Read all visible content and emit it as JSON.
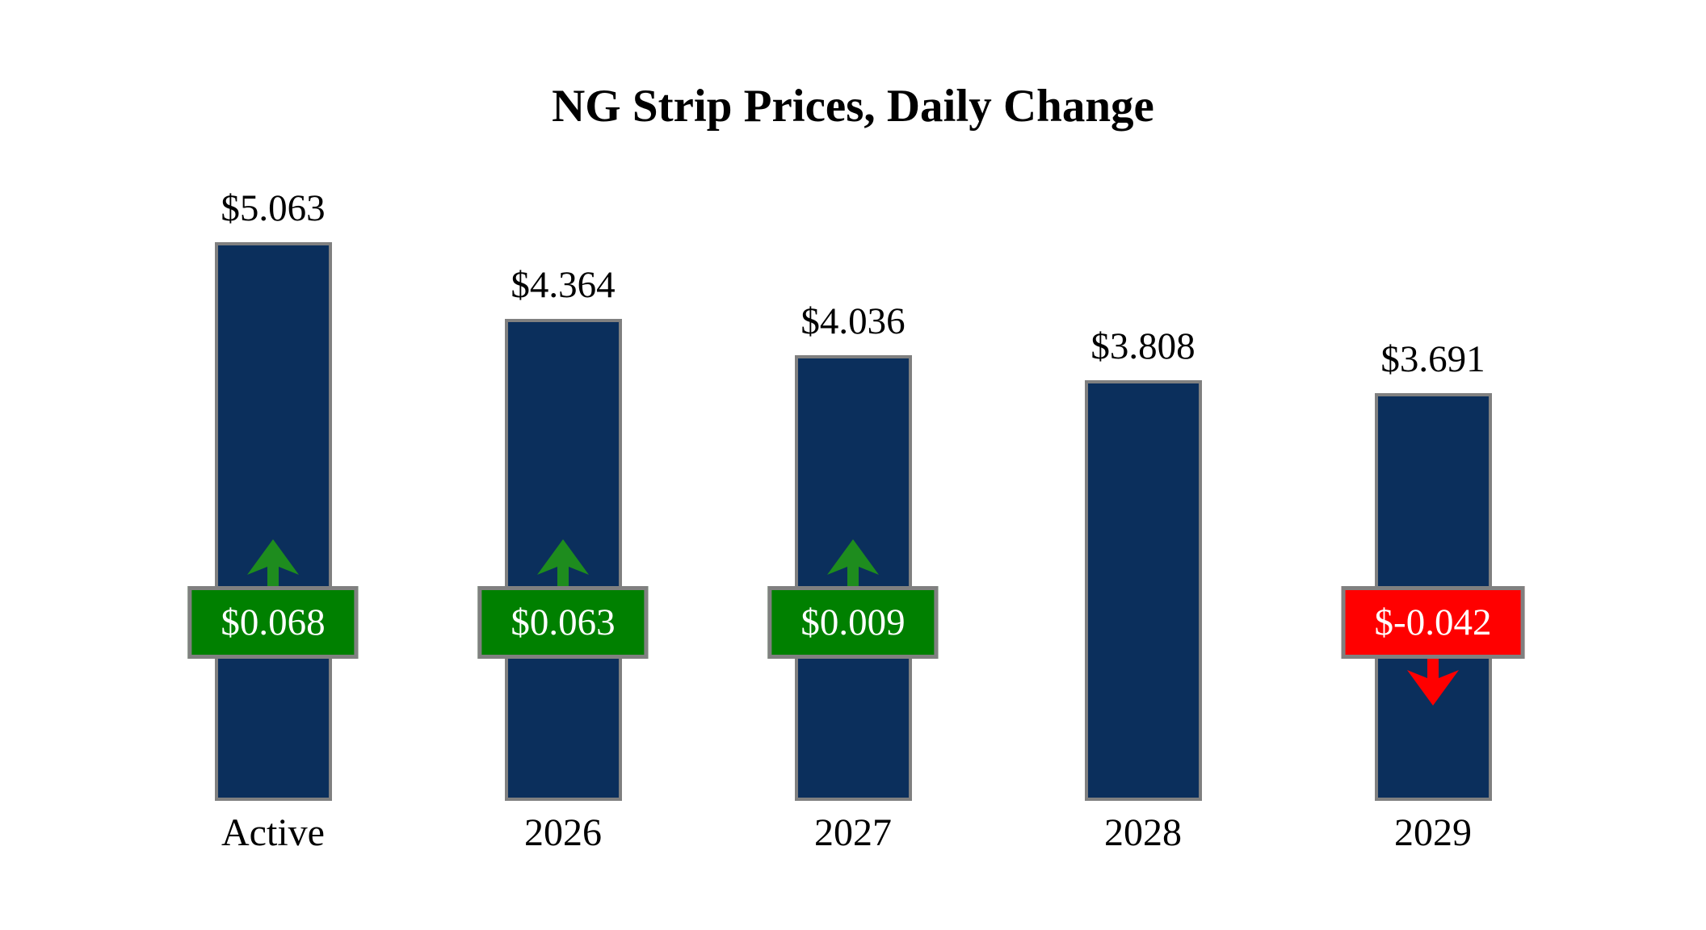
{
  "chart_data": {
    "type": "bar",
    "title": "NG Strip Prices, Daily Change",
    "categories": [
      "Active",
      "2026",
      "2027",
      "2028",
      "2029"
    ],
    "values": [
      5.063,
      4.364,
      4.036,
      3.808,
      3.691
    ],
    "value_labels": [
      "$5.063",
      "$4.364",
      "$4.036",
      "$3.808",
      "$3.691"
    ],
    "changes": [
      0.068,
      0.063,
      0.009,
      null,
      -0.042
    ],
    "change_labels": [
      "$0.068",
      "$0.063",
      "$0.009",
      null,
      "$-0.042"
    ],
    "ylim": [
      0,
      5.063
    ],
    "axes_visible": false,
    "grid": false,
    "legend": false,
    "colors": {
      "bar_fill": "#0b2f5c",
      "bar_border": "#808080",
      "badge_border": "#808080",
      "positive_badge": "#008000",
      "positive_arrow": "#1e8c1e",
      "negative_badge": "#ff0000",
      "negative_arrow": "#ff0000",
      "title_text": "#000000",
      "label_text": "#000000",
      "badge_text": "#ffffff",
      "background": "#ffffff"
    }
  }
}
